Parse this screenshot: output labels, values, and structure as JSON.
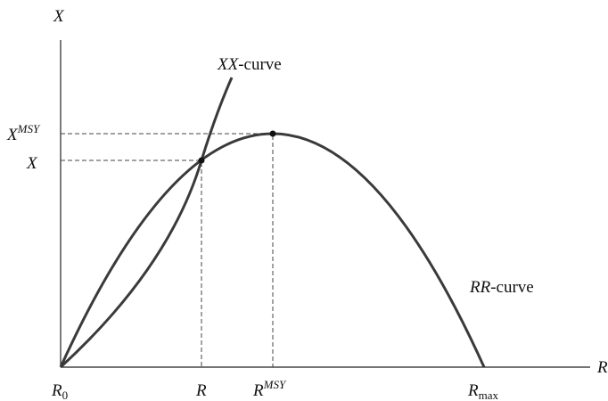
{
  "axes": {
    "y_label": "X",
    "x_label": "R"
  },
  "curves": {
    "xx": {
      "italic": "XX",
      "text": "-curve"
    },
    "rr": {
      "italic": "RR",
      "text": "-curve"
    }
  },
  "x_ticks": [
    {
      "base": "R",
      "sub": "0"
    },
    {
      "base": "R"
    },
    {
      "base": "R",
      "sup": "MSY"
    },
    {
      "base": "R",
      "sub": "max"
    }
  ],
  "y_ticks": [
    {
      "base": "X",
      "sup": "MSY"
    },
    {
      "base": "X"
    }
  ]
}
